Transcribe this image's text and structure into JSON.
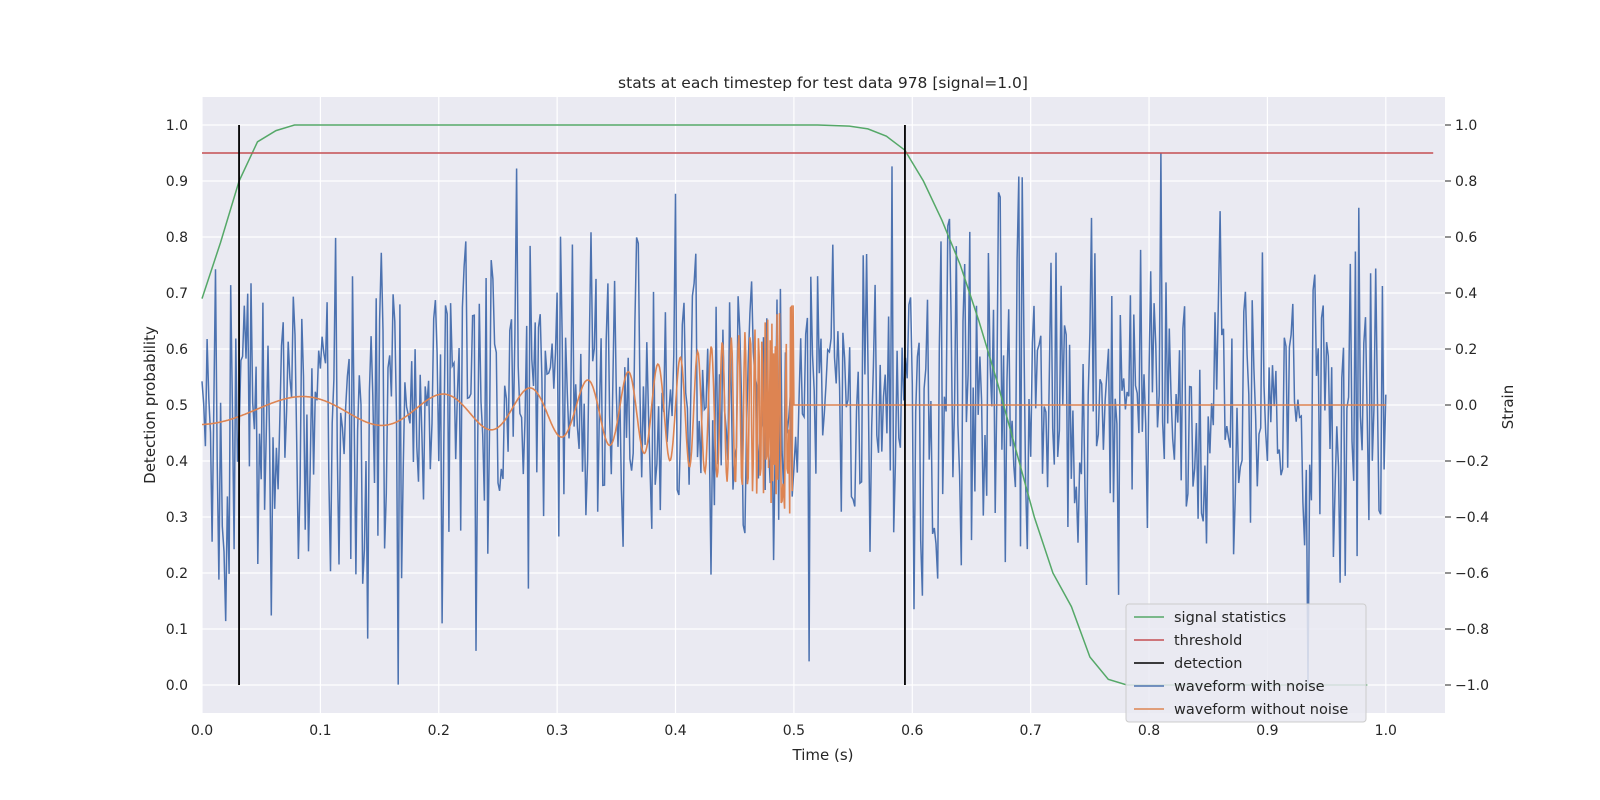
{
  "chart_data": {
    "type": "line",
    "title": "stats at each timestep for test data 978 [signal=1.0]",
    "xlabel": "Time (s)",
    "ylabel": "Detection probability",
    "y2label": "Strain",
    "xlim": [
      0.0,
      1.05
    ],
    "ylim": [
      -0.05,
      1.05
    ],
    "y2lim": [
      -1.1,
      1.1
    ],
    "x_ticks": [
      "0.0",
      "0.1",
      "0.2",
      "0.3",
      "0.4",
      "0.5",
      "0.6",
      "0.7",
      "0.8",
      "0.9",
      "1.0"
    ],
    "y_ticks": [
      "0.0",
      "0.1",
      "0.2",
      "0.3",
      "0.4",
      "0.5",
      "0.6",
      "0.7",
      "0.8",
      "0.9",
      "1.0"
    ],
    "y2_ticks": [
      "−1.0",
      "−0.8",
      "−0.6",
      "−0.4",
      "−0.2",
      "0.0",
      "0.2",
      "0.4",
      "0.6",
      "0.8",
      "1.0"
    ],
    "grid": true,
    "legend_position": "bottom-right",
    "colors": {
      "signal_statistics": "#55a868",
      "threshold": "#c44e52",
      "detection": "#000000",
      "waveform_with_noise": "#4c72b0",
      "waveform_without_noise": "#dd8452",
      "plot_background": "#eaeaf2",
      "grid": "#ffffff"
    },
    "series": [
      {
        "name": "signal statistics",
        "axis": "left",
        "x": [
          0.0,
          0.0156,
          0.0313,
          0.0469,
          0.0625,
          0.0781,
          0.1,
          0.2,
          0.3,
          0.4,
          0.5,
          0.52,
          0.5469,
          0.5625,
          0.5781,
          0.5938,
          0.6094,
          0.625,
          0.6406,
          0.6563,
          0.6719,
          0.6875,
          0.7031,
          0.7188,
          0.7344,
          0.75,
          0.7656,
          0.7813,
          0.8,
          0.9,
          0.9844
        ],
        "y": [
          0.69,
          0.79,
          0.9,
          0.97,
          0.99,
          1.0,
          1.0,
          1.0,
          1.0,
          1.0,
          1.0,
          1.0,
          0.998,
          0.993,
          0.98,
          0.955,
          0.9,
          0.83,
          0.75,
          0.65,
          0.54,
          0.42,
          0.3,
          0.2,
          0.14,
          0.05,
          0.01,
          0.0,
          0.0,
          0.0,
          0.0
        ]
      },
      {
        "name": "threshold",
        "axis": "left",
        "x": [
          0.0,
          1.04
        ],
        "y": [
          0.95,
          0.95
        ]
      },
      {
        "name": "detection",
        "axis": "left",
        "type": "vlines",
        "x": [
          0.0313,
          0.5938
        ],
        "y": [
          0.0,
          1.0
        ]
      },
      {
        "name": "waveform with noise",
        "axis": "right",
        "type": "noise",
        "x_range": [
          0.0,
          1.0
        ],
        "y_range": [
          -1.0,
          1.0
        ],
        "samples": 700
      },
      {
        "name": "waveform without noise",
        "axis": "right",
        "type": "chirp",
        "x_range": [
          0.0,
          1.0
        ],
        "merger_time": 0.5,
        "post_merger_value": 0.0,
        "amplitude_start": 0.05,
        "amplitude_end": 0.38
      }
    ]
  }
}
